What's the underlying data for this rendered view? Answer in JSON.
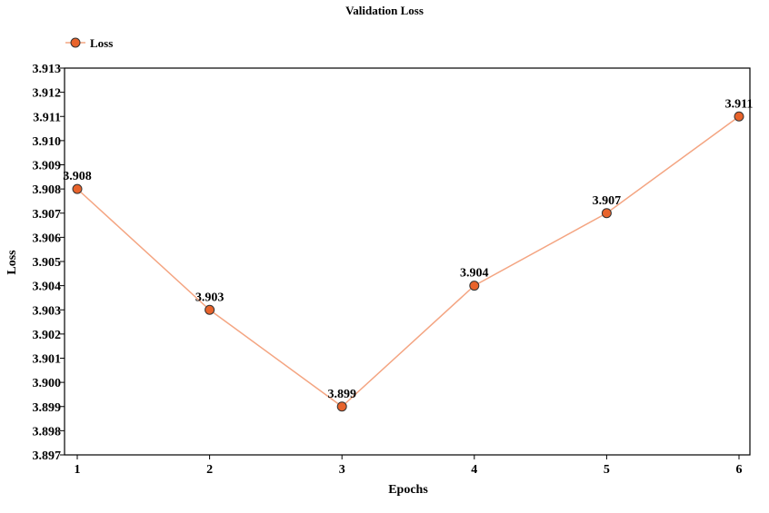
{
  "chart_data": {
    "type": "line",
    "title": "Validation Loss",
    "xlabel": "Epochs",
    "ylabel": "Loss",
    "x": [
      1,
      2,
      3,
      4,
      5,
      6
    ],
    "xticks": [
      "1",
      "2",
      "3",
      "4",
      "5",
      "6"
    ],
    "ylim": [
      3.897,
      3.913
    ],
    "yticks": [
      "3.897",
      "3.898",
      "3.899",
      "3.900",
      "3.901",
      "3.902",
      "3.903",
      "3.904",
      "3.905",
      "3.906",
      "3.907",
      "3.908",
      "3.909",
      "3.910",
      "3.911",
      "3.912",
      "3.913"
    ],
    "series": [
      {
        "name": "Loss",
        "values": [
          3.908,
          3.903,
          3.899,
          3.904,
          3.907,
          3.911
        ],
        "labels": [
          "3.908",
          "3.903",
          "3.899",
          "3.904",
          "3.907",
          "3.911"
        ],
        "line_color": "#f4a582",
        "marker_color": "#e8632b"
      }
    ],
    "legend": "top-left",
    "grid": false
  }
}
